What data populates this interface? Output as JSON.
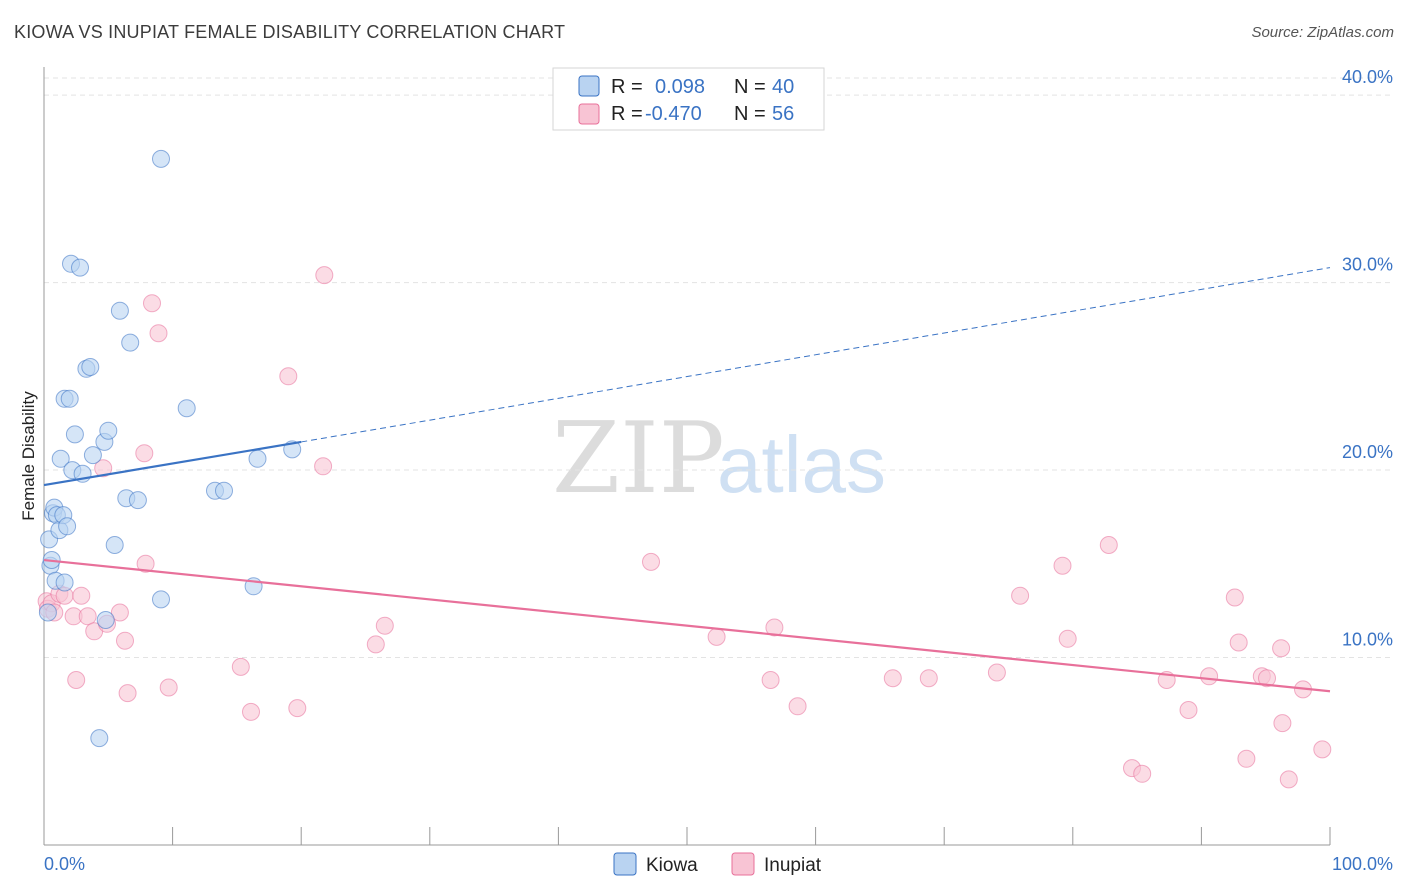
{
  "header": {
    "title": "KIOWA VS INUPIAT FEMALE DISABILITY CORRELATION CHART",
    "source": "Source: ZipAtlas.com"
  },
  "watermark": {
    "zip": "ZIP",
    "atlas": "atlas"
  },
  "colors": {
    "kiowa": "#3a73c4",
    "kiowa_fill": "#b9d3f1",
    "inupiat": "#e8709a",
    "inupiat_fill": "#f8c4d4",
    "tick_text": "#3a73c4",
    "grid": "#e3e3e3"
  },
  "legend": {
    "r_label": "R =",
    "n_label": "N =",
    "rows": [
      {
        "series": "Kiowa",
        "r": "0.098",
        "n": "40"
      },
      {
        "series": "Inupiat",
        "r": "-0.470",
        "n": "56"
      }
    ]
  },
  "bottom_legend": {
    "kiowa": "Kiowa",
    "inupiat": "Inupiat"
  },
  "chart_data": {
    "type": "scatter",
    "title": "KIOWA VS INUPIAT FEMALE DISABILITY CORRELATION CHART",
    "xlabel": "",
    "ylabel": "Female Disability",
    "xlim": [
      0,
      100
    ],
    "ylim": [
      0,
      41.5
    ],
    "x_tick_labels": [
      "0.0%",
      "100.0%"
    ],
    "y_ticks": [
      10,
      20,
      30,
      40
    ],
    "y_tick_labels": [
      "10.0%",
      "20.0%",
      "30.0%",
      "40.0%"
    ],
    "grid": "horizontal dashed",
    "legend_position": "top-center",
    "series": [
      {
        "name": "Kiowa",
        "r": 0.098,
        "n": 40,
        "points": [
          [
            0.3,
            12.4
          ],
          [
            0.4,
            16.3
          ],
          [
            0.5,
            14.9
          ],
          [
            0.6,
            15.2
          ],
          [
            0.7,
            17.7
          ],
          [
            0.8,
            18.0
          ],
          [
            0.9,
            14.1
          ],
          [
            1.0,
            17.6
          ],
          [
            1.2,
            16.8
          ],
          [
            1.3,
            20.6
          ],
          [
            1.5,
            17.6
          ],
          [
            1.6,
            14.0
          ],
          [
            1.6,
            23.8
          ],
          [
            1.8,
            17.0
          ],
          [
            2.0,
            23.8
          ],
          [
            2.1,
            31.0
          ],
          [
            2.2,
            20.0
          ],
          [
            2.4,
            21.9
          ],
          [
            2.8,
            30.8
          ],
          [
            3.0,
            19.8
          ],
          [
            3.3,
            25.4
          ],
          [
            3.6,
            25.5
          ],
          [
            3.8,
            20.8
          ],
          [
            4.3,
            5.7
          ],
          [
            4.7,
            21.5
          ],
          [
            4.8,
            12.0
          ],
          [
            5.0,
            22.1
          ],
          [
            5.5,
            16.0
          ],
          [
            5.9,
            28.5
          ],
          [
            6.4,
            18.5
          ],
          [
            6.7,
            26.8
          ],
          [
            7.3,
            18.4
          ],
          [
            9.1,
            36.6
          ],
          [
            9.1,
            13.1
          ],
          [
            11.1,
            23.3
          ],
          [
            13.3,
            18.9
          ],
          [
            14.0,
            18.9
          ],
          [
            16.3,
            13.8
          ],
          [
            16.6,
            20.6
          ],
          [
            19.3,
            21.1
          ]
        ],
        "trend": {
          "solid": [
            [
              0,
              19.2
            ],
            [
              20,
              21.5
            ]
          ],
          "dashed": [
            [
              20,
              21.5
            ],
            [
              100,
              30.8
            ]
          ]
        }
      },
      {
        "name": "Inupiat",
        "r": -0.47,
        "n": 56,
        "points": [
          [
            0.2,
            13.0
          ],
          [
            0.3,
            12.6
          ],
          [
            0.6,
            12.9
          ],
          [
            0.8,
            12.4
          ],
          [
            1.2,
            13.4
          ],
          [
            1.6,
            13.3
          ],
          [
            2.3,
            12.2
          ],
          [
            2.5,
            8.8
          ],
          [
            2.9,
            13.3
          ],
          [
            3.4,
            12.2
          ],
          [
            3.9,
            11.4
          ],
          [
            4.6,
            20.1
          ],
          [
            4.9,
            11.8
          ],
          [
            5.9,
            12.4
          ],
          [
            6.3,
            10.9
          ],
          [
            6.5,
            8.1
          ],
          [
            7.8,
            20.9
          ],
          [
            7.9,
            15.0
          ],
          [
            8.4,
            28.9
          ],
          [
            8.9,
            27.3
          ],
          [
            9.7,
            8.4
          ],
          [
            15.3,
            9.5
          ],
          [
            16.1,
            7.1
          ],
          [
            19.0,
            25.0
          ],
          [
            19.7,
            7.3
          ],
          [
            21.7,
            20.2
          ],
          [
            21.8,
            30.4
          ],
          [
            25.8,
            10.7
          ],
          [
            26.5,
            11.7
          ],
          [
            47.2,
            15.1
          ],
          [
            52.3,
            11.1
          ],
          [
            56.5,
            8.8
          ],
          [
            56.8,
            11.6
          ],
          [
            58.6,
            7.4
          ],
          [
            66.0,
            8.9
          ],
          [
            68.8,
            8.9
          ],
          [
            74.1,
            9.2
          ],
          [
            75.9,
            13.3
          ],
          [
            79.2,
            14.9
          ],
          [
            79.6,
            11.0
          ],
          [
            82.8,
            16.0
          ],
          [
            84.6,
            4.1
          ],
          [
            85.4,
            3.8
          ],
          [
            87.3,
            8.8
          ],
          [
            89.0,
            7.2
          ],
          [
            90.6,
            9.0
          ],
          [
            92.6,
            13.2
          ],
          [
            92.9,
            10.8
          ],
          [
            93.5,
            4.6
          ],
          [
            94.7,
            9.0
          ],
          [
            95.1,
            8.9
          ],
          [
            96.2,
            10.5
          ],
          [
            96.3,
            6.5
          ],
          [
            96.8,
            3.5
          ],
          [
            97.9,
            8.3
          ],
          [
            99.4,
            5.1
          ]
        ],
        "trend": {
          "solid": [
            [
              0,
              15.2
            ],
            [
              100,
              8.2
            ]
          ]
        }
      }
    ]
  }
}
